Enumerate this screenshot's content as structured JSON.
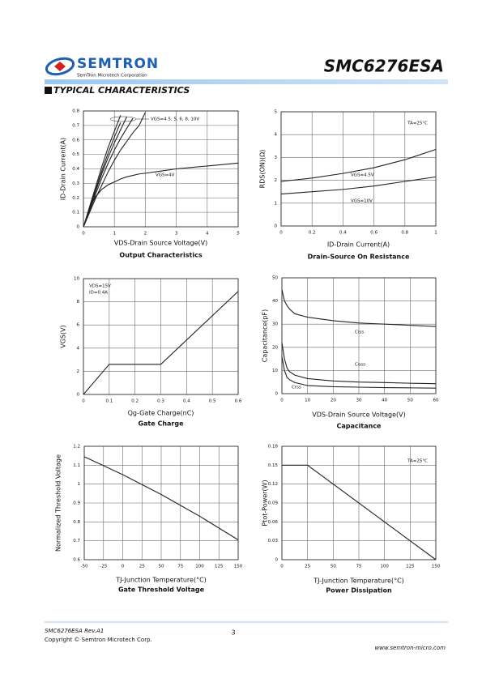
{
  "header": {
    "logo_name": "SEMTRON",
    "logo_subtitle": "SemTron Microtech Corporation",
    "part_number": "SMC6276ESA"
  },
  "section_title": "TYPICAL CHARACTERISTICS",
  "chart_data": [
    {
      "type": "line",
      "title": "Output Characteristics",
      "x_label": "VDS-Drain Source Voltage(V)",
      "y_label": "ID-Drain Current(A)",
      "x": [
        0,
        0.2,
        0.4,
        0.6,
        0.8,
        1,
        1.2,
        1.4,
        1.6,
        1.8,
        2,
        2.5,
        3,
        3.5,
        4,
        4.5,
        5
      ],
      "series": [
        {
          "name": "VGS=4V",
          "color": "#222222",
          "values": [
            0,
            0.13,
            0.21,
            0.26,
            0.29,
            0.31,
            0.33,
            0.345,
            0.355,
            0.365,
            0.37,
            0.385,
            0.4,
            0.41,
            0.42,
            0.43,
            0.44
          ]
        },
        {
          "color": "#222222",
          "values": [
            0,
            0.1,
            0.2,
            0.29,
            0.38,
            0.46,
            0.53,
            0.59,
            0.65,
            0.7,
            0.79,
            null,
            null,
            null,
            null,
            null,
            null
          ]
        },
        {
          "color": "#222222",
          "values": [
            0,
            0.11,
            0.23,
            0.34,
            0.44,
            0.53,
            0.61,
            0.68,
            0.75,
            null,
            null,
            null,
            null,
            null,
            null,
            null,
            null
          ]
        },
        {
          "color": "#222222",
          "values": [
            0,
            0.12,
            0.25,
            0.37,
            0.48,
            0.58,
            0.67,
            0.76,
            null,
            null,
            null,
            null,
            null,
            null,
            null,
            null,
            null
          ]
        },
        {
          "color": "#222222",
          "values": [
            0,
            0.13,
            0.26,
            0.39,
            0.51,
            0.62,
            0.72,
            null,
            null,
            null,
            null,
            null,
            null,
            null,
            null,
            null,
            null
          ]
        },
        {
          "color": "#222222",
          "values": [
            0,
            0.14,
            0.28,
            0.42,
            0.55,
            0.66,
            0.77,
            null,
            null,
            null,
            null,
            null,
            null,
            null,
            null,
            null,
            null
          ]
        }
      ],
      "annotations": [
        "VGS=4.5, 5, 6, 8, 10V"
      ],
      "xlim": [
        0,
        5
      ],
      "ylim": [
        0,
        0.8
      ],
      "xticks": [
        0,
        1,
        2,
        3,
        4,
        5
      ],
      "yticks": [
        0,
        0.1,
        0.2,
        0.3,
        0.4,
        0.5,
        0.6,
        0.7,
        0.8
      ],
      "grid": true
    },
    {
      "type": "line",
      "title": "Drain-Source On Resistance",
      "x_label": "ID-Drain Current(A)",
      "y_label": "RDS(ON)(Ω)",
      "x": [
        0,
        0.2,
        0.4,
        0.6,
        0.8,
        1
      ],
      "series": [
        {
          "name": "VGS=4.5V",
          "color": "#222222",
          "values": [
            1.95,
            2.1,
            2.3,
            2.55,
            2.9,
            3.35
          ]
        },
        {
          "name": "VGS=10V",
          "color": "#222222",
          "values": [
            1.4,
            1.5,
            1.6,
            1.75,
            1.95,
            2.15
          ]
        }
      ],
      "annotations": [
        "TA=25°C"
      ],
      "xlim": [
        0,
        1
      ],
      "ylim": [
        0,
        5
      ],
      "xticks": [
        0,
        0.2,
        0.4,
        0.6,
        0.8,
        1
      ],
      "yticks": [
        0,
        1,
        2,
        3,
        4,
        5
      ],
      "grid": true
    },
    {
      "type": "line",
      "title": "Gate Charge",
      "x_label": "Qg-Gate Charge(nC)",
      "y_label": "VGS(V)",
      "x": [
        0,
        0.1,
        0.3,
        0.6
      ],
      "values": [
        0,
        2.6,
        2.6,
        8.9
      ],
      "color": "#222222",
      "annotations": [
        "VDS=15V",
        "ID=0.4A"
      ],
      "xlim": [
        0,
        0.6
      ],
      "ylim": [
        0,
        10
      ],
      "xticks": [
        0,
        0.1,
        0.2,
        0.3,
        0.4,
        0.5,
        0.6
      ],
      "yticks": [
        0,
        2,
        4,
        6,
        8,
        10
      ],
      "grid": true
    },
    {
      "type": "line",
      "title": "Capacitance",
      "x_label": "VDS-Drain Source Voltage(V)",
      "y_label": "Capacitance(pF)",
      "x": [
        0,
        1,
        2,
        3,
        5,
        10,
        20,
        30,
        40,
        50,
        60
      ],
      "series": [
        {
          "name": "Ciss",
          "color": "#222222",
          "values": [
            45,
            40,
            38,
            36.5,
            34.5,
            33,
            31.5,
            30.5,
            30,
            29.5,
            29
          ]
        },
        {
          "name": "Coss",
          "color": "#222222",
          "values": [
            22,
            15,
            11,
            9.5,
            8,
            6.5,
            5.5,
            5,
            4.8,
            4.5,
            4.3
          ]
        },
        {
          "name": "Crss",
          "color": "#222222",
          "values": [
            16,
            10,
            7,
            6,
            4.8,
            3.5,
            3,
            2.8,
            2.6,
            2.5,
            2.4
          ]
        }
      ],
      "xlim": [
        0,
        60
      ],
      "ylim": [
        0,
        50
      ],
      "xticks": [
        0,
        10,
        20,
        30,
        40,
        50,
        60
      ],
      "yticks": [
        0,
        10,
        20,
        30,
        40,
        50
      ],
      "grid": true
    },
    {
      "type": "line",
      "title": "Gate Threshold Voltage",
      "x_label": "TJ-Junction Temperature(°C)",
      "y_label": "Normalized Threshold Voltage",
      "x": [
        -50,
        0,
        50,
        100,
        150
      ],
      "values": [
        1.145,
        1.05,
        0.945,
        0.83,
        0.705
      ],
      "color": "#222222",
      "xlim": [
        -50,
        150
      ],
      "ylim": [
        0.6,
        1.2
      ],
      "xticks": [
        -50,
        -25,
        0,
        25,
        50,
        75,
        100,
        125,
        150
      ],
      "yticks": [
        0.6,
        0.7,
        0.8,
        0.9,
        1,
        1.1,
        1.2
      ],
      "grid": true
    },
    {
      "type": "line",
      "title": "Power Dissipation",
      "x_label": "TJ-Junction Temperature(°C)",
      "y_label": "Ptot-Power(W)",
      "x": [
        0,
        25,
        150
      ],
      "values": [
        0.15,
        0.15,
        0
      ],
      "color": "#222222",
      "annotations": [
        "TA=25°C"
      ],
      "xlim": [
        0,
        150
      ],
      "ylim": [
        0,
        0.18
      ],
      "xticks": [
        0,
        25,
        50,
        75,
        100,
        125,
        150
      ],
      "yticks": [
        0,
        0.03,
        0.06,
        0.09,
        0.12,
        0.15,
        0.18
      ],
      "grid": true
    }
  ],
  "footer": {
    "revision": "SMC6276ESA Rev.A1",
    "page": "3",
    "copyright": "Copyright © Semtron Microtech Corp.",
    "website": "www.semtron-micro.com"
  }
}
